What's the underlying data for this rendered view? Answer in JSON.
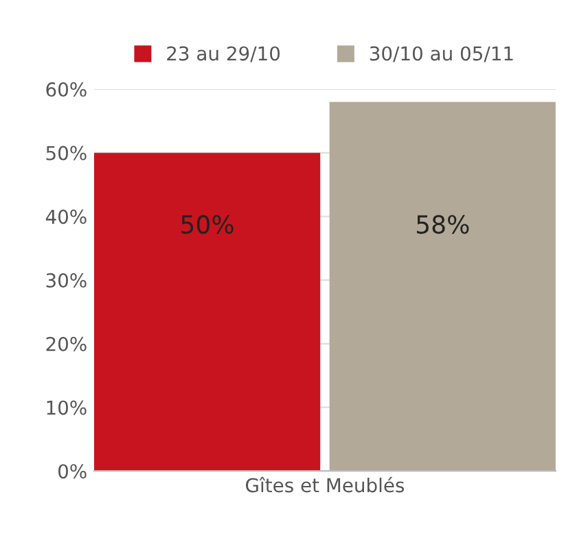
{
  "chart_data": {
    "type": "bar",
    "categories": [
      "Gîtes et Meublés"
    ],
    "series": [
      {
        "name": "23 au 29/10",
        "color": "#c8141e",
        "values": [
          50
        ],
        "value_labels": [
          "50%"
        ]
      },
      {
        "name": "30/10 au 05/11",
        "color": "#b3a999",
        "values": [
          58
        ],
        "value_labels": [
          "58%"
        ]
      }
    ],
    "ylim": [
      0,
      60
    ],
    "yticks": [
      {
        "value": 0,
        "label": "0%"
      },
      {
        "value": 10,
        "label": "10%"
      },
      {
        "value": 20,
        "label": "20%"
      },
      {
        "value": 30,
        "label": "30%"
      },
      {
        "value": 40,
        "label": "40%"
      },
      {
        "value": 50,
        "label": "50%"
      },
      {
        "value": 60,
        "label": "60%"
      }
    ],
    "grid": "y",
    "legend": "top"
  }
}
